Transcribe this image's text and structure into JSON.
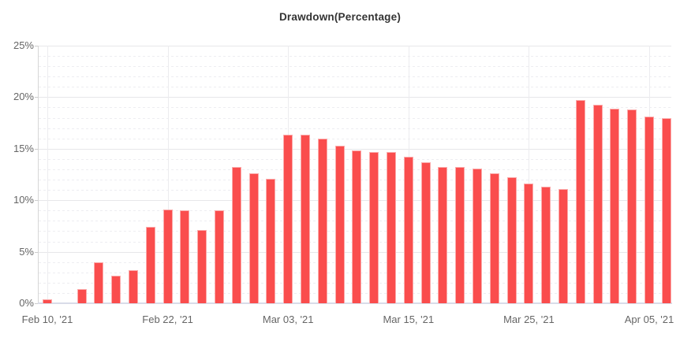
{
  "chart_data": {
    "type": "bar",
    "title": "Drawdown(Percentage)",
    "xlabel": "",
    "ylabel": "",
    "ylim": [
      0,
      25
    ],
    "y_tick_values": [
      0,
      5,
      10,
      15,
      20,
      25
    ],
    "y_tick_labels": [
      "0%",
      "5%",
      "10%",
      "15%",
      "20%",
      "25%"
    ],
    "x_tick_labels": [
      "Feb 10, '21",
      "Feb 22, '21",
      "Mar 03, '21",
      "Mar 15, '21",
      "Mar 25, '21",
      "Apr 05, '21"
    ],
    "x_tick_bar_indices": [
      0,
      7,
      14,
      21,
      28,
      35
    ],
    "values": [
      0.4,
      0,
      1.4,
      4.0,
      2.7,
      3.2,
      7.4,
      9.1,
      9.0,
      7.1,
      9.0,
      13.2,
      12.6,
      12.1,
      16.4,
      16.4,
      16.0,
      15.3,
      14.8,
      14.7,
      14.7,
      14.2,
      13.7,
      13.2,
      13.2,
      13.1,
      12.6,
      12.2,
      11.6,
      11.3,
      11.1,
      19.7,
      19.3,
      18.9,
      18.8,
      18.1,
      18.0
    ],
    "grid": "horizontal major every 5% solid, minor every 1% dotted, vertical lines at labeled dates",
    "legend": false,
    "bar_unit": "percent"
  },
  "colors": {
    "bar_fill": "#fa4d4d",
    "bar_border": "#fbabab",
    "grid_major": "#e7e7ea",
    "grid_minor": "#ededf1",
    "grid_vertical": "#ececef",
    "baseline": "#d9dce8",
    "axis_line": "#d6d6d6",
    "tick": "#cccccc",
    "title_text": "#333333",
    "axis_text": "#666666",
    "background": "#ffffff"
  }
}
